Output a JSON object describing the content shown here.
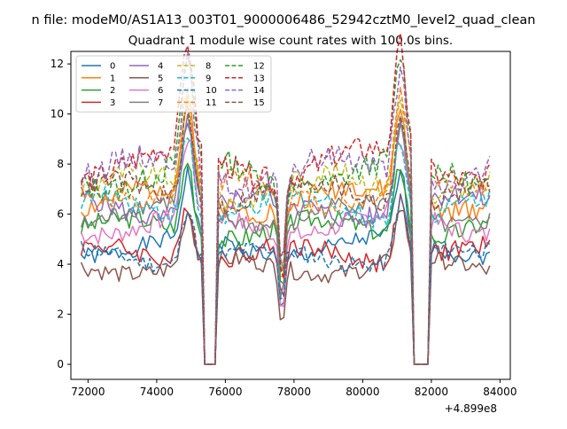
{
  "figure": {
    "suptitle": "n file: modeM0/AS1A13_003T01_9000006486_52942cztM0_level2_quad_clean"
  },
  "chart_data": {
    "type": "line",
    "title": "Quadrant 1 module wise count rates with 100.0s bins.",
    "xlabel": "",
    "ylabel": "",
    "x_offset_label": "+4.899e8",
    "xlim": [
      71500,
      84300
    ],
    "ylim": [
      -0.6,
      12.5
    ],
    "x_ticks": [
      72000,
      74000,
      76000,
      78000,
      80000,
      82000,
      84000
    ],
    "y_ticks": [
      0,
      2,
      4,
      6,
      8,
      10,
      12
    ],
    "x_start": 71800,
    "x_step": 100,
    "n_points": 120,
    "gaps": [
      [
        75400,
        75700
      ],
      [
        81500,
        81900
      ]
    ],
    "dip_center": 77650,
    "peaks": [
      74900,
      81100
    ],
    "legend_position": "upper left",
    "legend_ncol": 4,
    "series": [
      {
        "name": "0",
        "color": "#1f77b4",
        "dash": "solid",
        "level": 4.7,
        "noise": 0.35
      },
      {
        "name": "1",
        "color": "#ff7f0e",
        "dash": "solid",
        "level": 6.6,
        "noise": 0.45
      },
      {
        "name": "2",
        "color": "#2ca02c",
        "dash": "solid",
        "level": 5.4,
        "noise": 0.4
      },
      {
        "name": "3",
        "color": "#d62728",
        "dash": "solid",
        "level": 4.4,
        "noise": 0.4
      },
      {
        "name": "4",
        "color": "#9467bd",
        "dash": "solid",
        "level": 6.3,
        "noise": 0.45
      },
      {
        "name": "5",
        "color": "#8c564b",
        "dash": "solid",
        "level": 3.9,
        "noise": 0.35
      },
      {
        "name": "6",
        "color": "#e377c2",
        "dash": "solid",
        "level": 5.6,
        "noise": 0.4
      },
      {
        "name": "7",
        "color": "#7f7f7f",
        "dash": "solid",
        "level": 6.0,
        "noise": 0.4
      },
      {
        "name": "8",
        "color": "#bcbd22",
        "dash": "dashed",
        "level": 7.1,
        "noise": 0.45
      },
      {
        "name": "9",
        "color": "#17becf",
        "dash": "dashed",
        "level": 6.2,
        "noise": 0.4
      },
      {
        "name": "10",
        "color": "#1f77b4",
        "dash": "dashed",
        "level": 4.3,
        "noise": 0.35
      },
      {
        "name": "11",
        "color": "#ff7f0e",
        "dash": "dashed",
        "level": 6.9,
        "noise": 0.45
      },
      {
        "name": "12",
        "color": "#2ca02c",
        "dash": "dashed",
        "level": 7.6,
        "noise": 0.5
      },
      {
        "name": "13",
        "color": "#d62728",
        "dash": "dashed",
        "level": 8.0,
        "noise": 0.5
      },
      {
        "name": "14",
        "color": "#9467bd",
        "dash": "dashed",
        "level": 7.7,
        "noise": 0.5
      },
      {
        "name": "15",
        "color": "#8c564b",
        "dash": "dashed",
        "level": 6.8,
        "noise": 0.45
      }
    ]
  }
}
